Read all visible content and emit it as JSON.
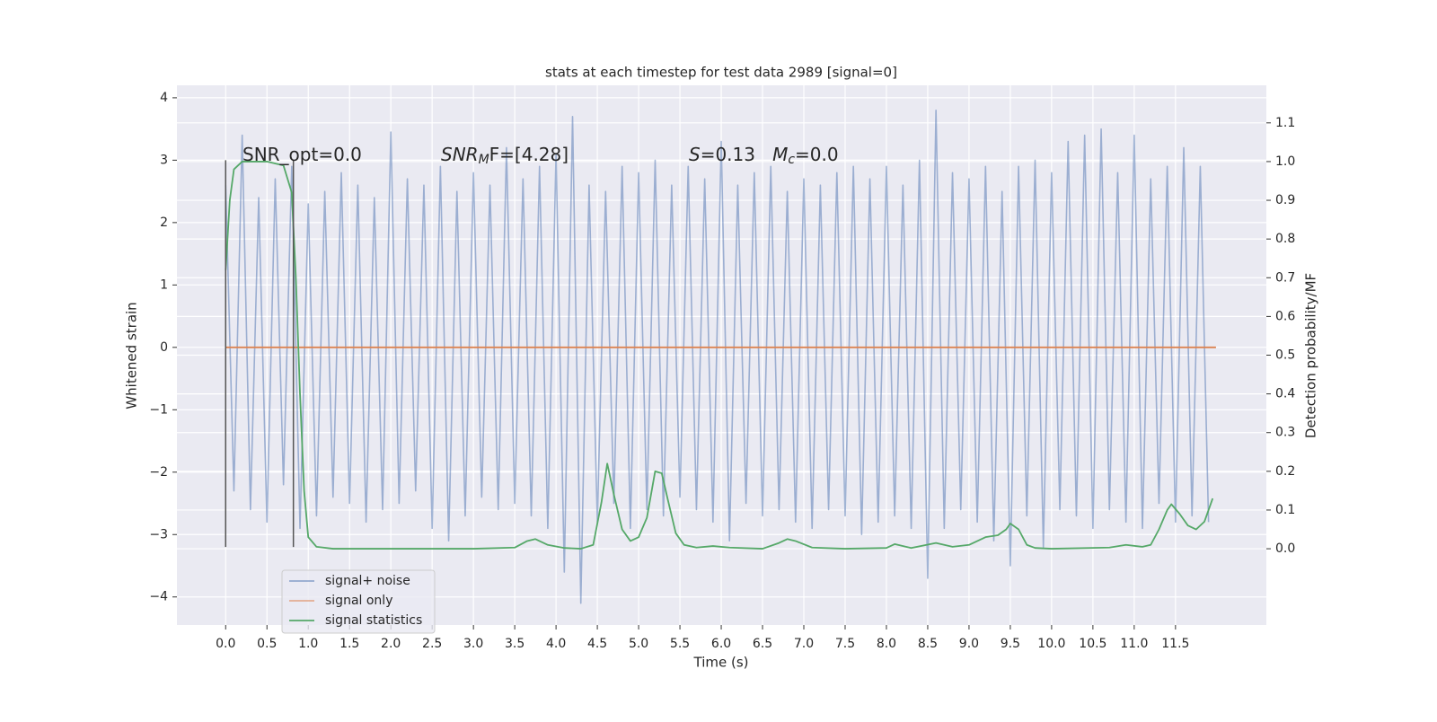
{
  "chart_data": {
    "type": "line",
    "title": "stats at each timestep for test data 2989 [signal=0]",
    "x_label": "Time (s)",
    "y_label": "Whitened strain",
    "y2_label": "Detection probability/MF",
    "xlim": [
      -0.59,
      12.6
    ],
    "ylim": [
      -4.45,
      4.2
    ],
    "y2lim": [
      -0.197,
      1.197
    ],
    "grid": true,
    "background": "#eaeaf2",
    "legend": "lower left",
    "xticks": [
      {
        "value": 0,
        "label": "0.0"
      },
      0.5,
      {
        "value": 1,
        "label": "1.0"
      },
      1.5,
      {
        "value": 2,
        "label": "2.0"
      },
      2.5,
      {
        "value": 3,
        "label": "3.0"
      },
      3.5,
      {
        "value": 4,
        "label": "4.0"
      },
      4.5,
      {
        "value": 5,
        "label": "5.0"
      },
      5.5,
      {
        "value": 6,
        "label": "6.0"
      },
      6.5,
      {
        "value": 7,
        "label": "7.0"
      },
      7.5,
      {
        "value": 8,
        "label": "8.0"
      },
      8.5,
      {
        "value": 9,
        "label": "9.0"
      },
      9.5,
      {
        "value": 10,
        "label": "10.0"
      },
      10.5,
      {
        "value": 11,
        "label": "11.0"
      },
      11.5
    ],
    "yticks": [
      {
        "value": -4,
        "label": "−4"
      },
      {
        "value": -3,
        "label": "−3"
      },
      {
        "value": -2,
        "label": "−2"
      },
      {
        "value": -1,
        "label": "−1"
      },
      0,
      1,
      2,
      3,
      4
    ],
    "y2ticks": [
      {
        "value": 0,
        "label": "0.0"
      },
      0.1,
      0.2,
      0.3,
      0.4,
      0.5,
      0.6,
      0.7,
      0.8,
      0.9,
      {
        "value": 1,
        "label": "1.0"
      },
      1.1
    ],
    "annotations": [
      {
        "parts": [
          {
            "text": "SNR_opt=0.0"
          }
        ]
      },
      {
        "parts": [
          {
            "text": "SNR",
            "italic": true
          },
          {
            "text": "M",
            "italic": true,
            "sub": true
          },
          {
            "text": "F=[4.28]"
          }
        ]
      },
      {
        "parts": [
          {
            "text": "S",
            "italic": true
          },
          {
            "text": "=0.13   "
          },
          {
            "text": "M",
            "italic": true
          },
          {
            "text": "c",
            "italic": true,
            "sub": true
          },
          {
            "text": "=0.0"
          }
        ]
      }
    ],
    "vlines": [
      {
        "x": 0,
        "ymin": -3.2,
        "ymax": 3.0,
        "color": "#555555"
      },
      {
        "x": 0.82,
        "ymin": -3.2,
        "ymax": 3.0,
        "color": "#555555"
      }
    ],
    "series": [
      {
        "name": "signal+ noise",
        "color": "#4c72b0",
        "x": [
          0,
          0.1,
          0.2,
          0.3,
          0.4,
          0.5,
          0.6,
          0.7,
          0.8,
          0.9,
          1,
          1.1,
          1.2,
          1.3,
          1.4,
          1.5,
          1.6,
          1.7,
          1.8,
          1.9,
          2,
          2.1,
          2.2,
          2.3,
          2.4,
          2.5,
          2.6,
          2.7,
          2.8,
          2.9,
          3,
          3.1,
          3.2,
          3.3,
          3.4,
          3.5,
          3.6,
          3.7,
          3.8,
          3.9,
          4,
          4.1,
          4.2,
          4.3,
          4.4,
          4.5,
          4.6,
          4.7,
          4.8,
          4.9,
          5,
          5.1,
          5.2,
          5.3,
          5.4,
          5.5,
          5.6,
          5.7,
          5.8,
          5.9,
          6,
          6.1,
          6.2,
          6.3,
          6.4,
          6.5,
          6.6,
          6.7,
          6.8,
          6.9,
          7,
          7.1,
          7.2,
          7.3,
          7.4,
          7.5,
          7.6,
          7.7,
          7.8,
          7.9,
          8,
          8.1,
          8.2,
          8.3,
          8.4,
          8.5,
          8.6,
          8.7,
          8.8,
          8.9,
          9,
          9.1,
          9.2,
          9.3,
          9.4,
          9.5,
          9.6,
          9.7,
          9.8,
          9.9,
          10,
          10.1,
          10.2,
          10.3,
          10.4,
          10.5,
          10.6,
          10.7,
          10.8,
          10.9,
          11,
          11.1,
          11.2,
          11.3,
          11.4,
          11.5,
          11.6,
          11.7,
          11.8,
          11.9
        ],
        "values": [
          2.6,
          -2.3,
          3.4,
          -2.6,
          2.4,
          -2.8,
          2.7,
          -2.2,
          2.9,
          -2.9,
          2.3,
          -2.7,
          2.5,
          -2.4,
          2.8,
          -2.5,
          2.6,
          -2.8,
          2.4,
          -2.6,
          3.45,
          -2.5,
          2.7,
          -2.3,
          2.6,
          -2.9,
          2.9,
          -3.1,
          2.5,
          -2.7,
          2.8,
          -2.4,
          2.6,
          -2.6,
          3.2,
          -2.5,
          2.7,
          -2.7,
          2.9,
          -2.9,
          3.1,
          -3.6,
          3.7,
          -4.1,
          2.6,
          -2.8,
          2.5,
          -2.5,
          2.9,
          -2.9,
          2.8,
          -2.6,
          3.0,
          -2.7,
          2.6,
          -2.4,
          2.9,
          -2.6,
          2.7,
          -2.8,
          3.3,
          -3.1,
          2.6,
          -2.5,
          2.8,
          -2.7,
          2.9,
          -2.6,
          2.5,
          -2.8,
          2.7,
          -2.9,
          2.6,
          -2.6,
          2.8,
          -2.7,
          2.9,
          -3.0,
          2.7,
          -2.8,
          2.9,
          -2.7,
          2.6,
          -2.9,
          3.0,
          -3.7,
          3.8,
          -2.9,
          2.8,
          -2.6,
          2.7,
          -2.8,
          2.9,
          -3.1,
          2.5,
          -3.5,
          2.9,
          -2.7,
          3.0,
          -3.2,
          2.8,
          -2.6,
          3.3,
          -2.7,
          3.4,
          -2.9,
          3.5,
          -2.6,
          2.8,
          -2.8,
          3.4,
          -2.9,
          2.7,
          -2.5,
          2.9,
          -2.8,
          3.2,
          -2.7,
          2.9,
          -2.8
        ]
      },
      {
        "name": "signal only",
        "color": "#dd8452",
        "x": [
          0,
          11.99
        ],
        "values": [
          0,
          0
        ]
      },
      {
        "name": "signal statistics",
        "color": "#55a868",
        "axis": "y2",
        "x": [
          0,
          0.05,
          0.1,
          0.2,
          0.5,
          0.7,
          0.8,
          0.85,
          0.9,
          0.95,
          1.0,
          1.1,
          1.3,
          2.5,
          3.0,
          3.5,
          3.65,
          3.75,
          3.9,
          4.1,
          4.3,
          4.45,
          4.55,
          4.62,
          4.7,
          4.8,
          4.9,
          5.0,
          5.1,
          5.2,
          5.28,
          5.35,
          5.45,
          5.55,
          5.7,
          5.9,
          6.1,
          6.5,
          6.7,
          6.8,
          6.9,
          7.1,
          7.5,
          8.0,
          8.1,
          8.3,
          8.6,
          8.8,
          9.0,
          9.2,
          9.35,
          9.45,
          9.5,
          9.6,
          9.7,
          9.8,
          10,
          10.7,
          10.9,
          11.1,
          11.2,
          11.3,
          11.4,
          11.45,
          11.55,
          11.65,
          11.75,
          11.85,
          11.95
        ],
        "values": [
          0.72,
          0.9,
          0.98,
          1.0,
          1.0,
          0.99,
          0.92,
          0.7,
          0.4,
          0.15,
          0.03,
          0.005,
          0,
          0,
          0,
          0.003,
          0.02,
          0.025,
          0.01,
          0.002,
          0,
          0.01,
          0.12,
          0.22,
          0.14,
          0.05,
          0.02,
          0.03,
          0.08,
          0.2,
          0.195,
          0.13,
          0.04,
          0.01,
          0.003,
          0.007,
          0.003,
          0,
          0.015,
          0.025,
          0.02,
          0.003,
          0,
          0.002,
          0.012,
          0.002,
          0.015,
          0.005,
          0.01,
          0.03,
          0.035,
          0.05,
          0.065,
          0.05,
          0.01,
          0.002,
          0,
          0.003,
          0.01,
          0.005,
          0.01,
          0.05,
          0.1,
          0.115,
          0.09,
          0.06,
          0.05,
          0.07,
          0.13
        ]
      }
    ]
  }
}
